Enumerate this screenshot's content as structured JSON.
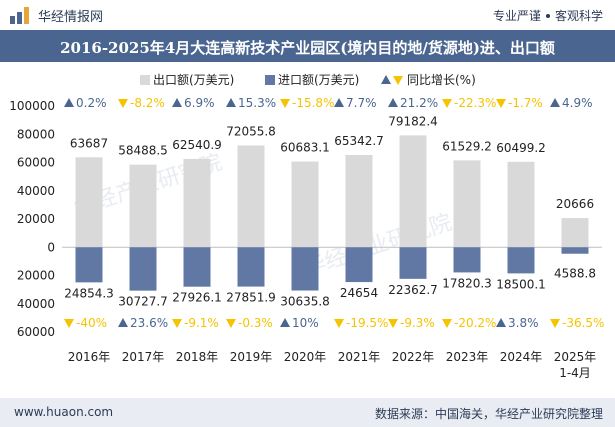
{
  "header": {
    "brand": "华经情报网",
    "tags": [
      "专业严谨",
      "客观科学"
    ]
  },
  "title": "2016-2025年4月大连高新技术产业园区(境内目的地/货源地)进、出口额",
  "footer": {
    "website": "www.huaon.com",
    "source": "数据来源：中国海关，华经产业研究院整理"
  },
  "watermark": "华经产业研究院",
  "colors": {
    "export_bar": "#d9d9d9",
    "import_bar": "#6078a3",
    "growth_up": "#4a6690",
    "growth_down": "#f5c400",
    "title_band": "#4a6690"
  },
  "chart_data": {
    "type": "bar",
    "categories": [
      "2016年",
      "2017年",
      "2018年",
      "2019年",
      "2020年",
      "2021年",
      "2022年",
      "2023年",
      "2024年",
      "2025年\n1-4月"
    ],
    "series": [
      {
        "name": "出口额(万美元)",
        "values": [
          63687,
          58488.5,
          62540.9,
          72055.8,
          60683.1,
          65342.7,
          79182.4,
          61529.2,
          60499.2,
          20666
        ]
      },
      {
        "name": "进口额(万美元)",
        "values": [
          24854.3,
          30727.7,
          27926.1,
          27851.9,
          30635.8,
          24654,
          22362.7,
          17820.3,
          18500.1,
          4588.8
        ],
        "plotted_as": "negative"
      }
    ],
    "export_labels": [
      "63687",
      "58488.5",
      "62540.9",
      "72055.8",
      "60683.1",
      "65342.7",
      "79182.4",
      "61529.2",
      "60499.2",
      "20666"
    ],
    "import_labels": [
      "24854.3",
      "30727.7",
      "27926.1",
      "27851.9",
      "30635.8",
      "24654",
      "22362.7",
      "17820.3",
      "18500.1",
      "4588.8"
    ],
    "legend": [
      {
        "label": "出口额(万美元)",
        "marker": "square",
        "color": "#d9d9d9"
      },
      {
        "label": "进口额(万美元)",
        "marker": "square",
        "color": "#6078a3"
      },
      {
        "label": "同比增长(%)",
        "marker": "triangles",
        "color": "#4a6690"
      }
    ],
    "export_growth": [
      {
        "dir": "up",
        "text": "0.2%"
      },
      {
        "dir": "down",
        "text": "-8.2%"
      },
      {
        "dir": "up",
        "text": "6.9%"
      },
      {
        "dir": "up",
        "text": "15.3%"
      },
      {
        "dir": "down",
        "text": "-15.8%"
      },
      {
        "dir": "up",
        "text": "7.7%"
      },
      {
        "dir": "up",
        "text": "21.2%"
      },
      {
        "dir": "down",
        "text": "-22.3%"
      },
      {
        "dir": "down",
        "text": "-1.7%"
      },
      {
        "dir": "up",
        "text": "4.9%"
      }
    ],
    "import_growth": [
      {
        "dir": "down",
        "text": "-40%"
      },
      {
        "dir": "up",
        "text": "23.6%"
      },
      {
        "dir": "down",
        "text": "-9.1%"
      },
      {
        "dir": "down",
        "text": "-0.3%"
      },
      {
        "dir": "up",
        "text": "10%"
      },
      {
        "dir": "down",
        "text": "-19.5%"
      },
      {
        "dir": "down",
        "text": "-9.3%"
      },
      {
        "dir": "down",
        "text": "-20.2%"
      },
      {
        "dir": "up",
        "text": "3.8%"
      },
      {
        "dir": "down",
        "text": "-36.5%"
      }
    ],
    "y_ticks": [
      100000,
      80000,
      60000,
      40000,
      20000,
      0,
      -20000,
      -40000,
      -60000
    ],
    "y_tick_labels": [
      "100000",
      "80000",
      "60000",
      "40000",
      "20000",
      "0",
      "20000",
      "40000",
      "60000"
    ],
    "ylim": [
      -60000,
      100000
    ],
    "grid": false,
    "legend_position": "top"
  }
}
